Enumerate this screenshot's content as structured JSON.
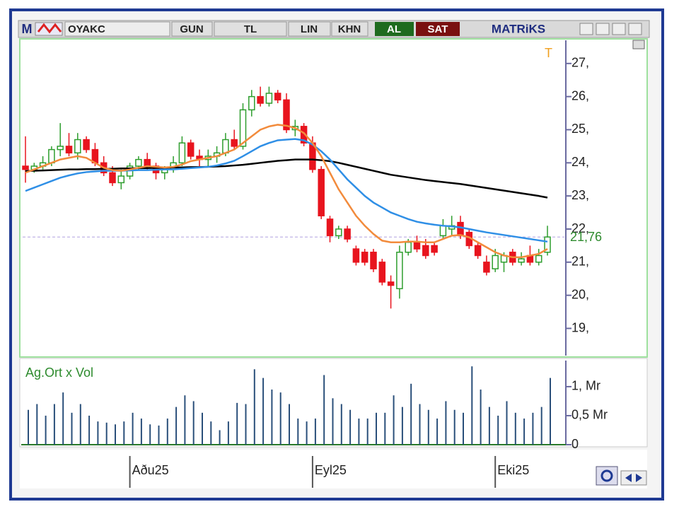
{
  "toolbar": {
    "logo": "M",
    "symbol": "OYAKC",
    "period": "GUN",
    "currency": "TL",
    "scale": "LIN",
    "style": "KHN",
    "buy": "AL",
    "sell": "SAT",
    "brand": "MATRiKS"
  },
  "chart_data": [
    {
      "type": "candlestick",
      "marker": "T",
      "categories": [
        null,
        null,
        null,
        null,
        null,
        null,
        null,
        null,
        null,
        null,
        null,
        null,
        "Aðu25",
        null,
        null,
        null,
        null,
        null,
        null,
        null,
        null,
        null,
        null,
        null,
        null,
        null,
        null,
        null,
        null,
        null,
        null,
        null,
        null,
        "Eyl25",
        null,
        null,
        null,
        null,
        null,
        null,
        null,
        null,
        null,
        null,
        null,
        null,
        null,
        null,
        null,
        null,
        null,
        null,
        null,
        null,
        "Eki25",
        null,
        null,
        null,
        null,
        null,
        null
      ],
      "open": [
        23.9,
        23.8,
        23.9,
        24.0,
        24.4,
        24.5,
        24.3,
        24.7,
        24.4,
        24.0,
        23.7,
        23.4,
        23.6,
        23.9,
        24.1,
        23.9,
        23.7,
        23.8,
        24.0,
        24.6,
        24.2,
        24.1,
        24.2,
        24.3,
        24.7,
        24.5,
        25.6,
        26.0,
        25.8,
        26.1,
        25.9,
        25.0,
        25.1,
        24.6,
        23.8,
        22.3,
        21.8,
        22.0,
        21.4,
        21.3,
        21.3,
        21.0,
        20.4,
        20.2,
        21.3,
        21.6,
        21.5,
        21.5,
        21.8,
        22.0,
        22.2,
        21.9,
        21.5,
        21.0,
        20.8,
        21.0,
        21.3,
        21.0,
        21.2,
        21.0,
        21.3
      ],
      "high": [
        24.8,
        24.0,
        24.2,
        24.5,
        25.2,
        24.9,
        24.9,
        24.8,
        24.6,
        24.2,
        23.9,
        23.8,
        24.0,
        24.2,
        24.3,
        24.0,
        23.9,
        24.2,
        24.8,
        24.7,
        24.4,
        24.4,
        24.5,
        24.9,
        25.0,
        25.8,
        26.2,
        26.3,
        26.3,
        26.2,
        26.1,
        25.3,
        25.2,
        24.8,
        23.9,
        22.4,
        22.1,
        22.1,
        21.5,
        21.4,
        21.4,
        21.1,
        20.6,
        21.5,
        21.7,
        21.8,
        21.7,
        21.6,
        22.3,
        22.4,
        22.4,
        22.0,
        21.6,
        21.2,
        21.4,
        21.3,
        21.4,
        21.3,
        21.5,
        21.4,
        22.1
      ],
      "low": [
        23.4,
        23.7,
        23.8,
        23.9,
        24.2,
        24.2,
        24.1,
        24.3,
        23.9,
        23.6,
        23.3,
        23.2,
        23.5,
        23.8,
        23.8,
        23.5,
        23.5,
        23.7,
        23.9,
        24.1,
        23.9,
        23.9,
        24.0,
        24.2,
        24.4,
        24.4,
        25.4,
        25.7,
        25.7,
        25.8,
        24.9,
        24.8,
        24.5,
        23.7,
        22.3,
        21.6,
        21.7,
        21.6,
        20.9,
        20.9,
        20.7,
        20.3,
        19.6,
        19.9,
        21.2,
        21.3,
        21.1,
        21.2,
        21.7,
        21.8,
        21.7,
        21.4,
        21.1,
        20.6,
        20.7,
        20.7,
        20.9,
        20.9,
        20.9,
        20.9,
        21.2
      ],
      "close": [
        23.8,
        23.9,
        24.0,
        24.4,
        24.5,
        24.3,
        24.7,
        24.4,
        24.0,
        23.7,
        23.4,
        23.6,
        23.9,
        24.1,
        23.9,
        23.7,
        23.8,
        24.0,
        24.6,
        24.2,
        24.1,
        24.2,
        24.3,
        24.7,
        24.5,
        25.6,
        26.0,
        25.8,
        26.1,
        25.9,
        25.0,
        25.1,
        24.6,
        23.8,
        22.4,
        21.8,
        22.0,
        21.7,
        21.0,
        21.0,
        20.8,
        20.4,
        20.3,
        21.3,
        21.6,
        21.4,
        21.2,
        21.3,
        22.1,
        22.1,
        21.8,
        21.5,
        21.2,
        20.7,
        21.2,
        21.2,
        21.0,
        21.1,
        21.0,
        21.2,
        21.76
      ],
      "up_color": "#2e9e2e",
      "down_color": "#e8141e",
      "overlays": [
        {
          "color": "#000000",
          "values": [
            23.75,
            23.76,
            23.77,
            23.78,
            23.79,
            23.8,
            23.8,
            23.81,
            23.81,
            23.82,
            23.82,
            23.83,
            23.83,
            23.84,
            23.84,
            23.85,
            23.85,
            23.86,
            23.86,
            23.87,
            23.87,
            23.88,
            23.89,
            23.9,
            23.92,
            23.94,
            23.97,
            24.0,
            24.03,
            24.06,
            24.08,
            24.1,
            24.1,
            24.1,
            24.08,
            24.05,
            24.0,
            23.94,
            23.88,
            23.82,
            23.76,
            23.7,
            23.64,
            23.6,
            23.56,
            23.52,
            23.48,
            23.45,
            23.42,
            23.39,
            23.36,
            23.32,
            23.28,
            23.24,
            23.2,
            23.16,
            23.12,
            23.08,
            23.04,
            23.0,
            22.95
          ]
        },
        {
          "color": "#2f8fe6",
          "values": [
            23.15,
            23.25,
            23.35,
            23.45,
            23.55,
            23.62,
            23.68,
            23.72,
            23.74,
            23.76,
            23.76,
            23.76,
            23.77,
            23.78,
            23.78,
            23.79,
            23.8,
            23.8,
            23.82,
            23.84,
            23.86,
            23.88,
            23.92,
            23.98,
            24.06,
            24.2,
            24.35,
            24.5,
            24.6,
            24.68,
            24.7,
            24.72,
            24.68,
            24.55,
            24.35,
            24.1,
            23.8,
            23.5,
            23.25,
            23.0,
            22.8,
            22.65,
            22.5,
            22.4,
            22.3,
            22.22,
            22.17,
            22.13,
            22.1,
            22.08,
            22.05,
            22.0,
            21.95,
            21.9,
            21.86,
            21.82,
            21.78,
            21.74,
            21.7,
            21.66,
            21.62
          ]
        },
        {
          "color": "#f28b3c",
          "values": [
            23.7,
            23.8,
            23.9,
            24.0,
            24.1,
            24.15,
            24.2,
            24.15,
            24.0,
            23.85,
            23.78,
            23.76,
            23.8,
            23.85,
            23.9,
            23.88,
            23.86,
            23.88,
            23.95,
            24.05,
            24.1,
            24.15,
            24.2,
            24.3,
            24.4,
            24.6,
            24.8,
            25.0,
            25.1,
            25.15,
            25.12,
            25.05,
            24.9,
            24.6,
            24.2,
            23.7,
            23.2,
            22.8,
            22.4,
            22.1,
            21.85,
            21.65,
            21.6,
            21.6,
            21.62,
            21.62,
            21.6,
            21.6,
            21.7,
            21.8,
            21.82,
            21.75,
            21.6,
            21.45,
            21.3,
            21.2,
            21.15,
            21.15,
            21.2,
            21.25,
            21.4
          ]
        }
      ],
      "last_price": {
        "value": 21.76,
        "label": "21,76"
      },
      "ylim": [
        18.2,
        27.7
      ],
      "yticks": [
        {
          "value": 19,
          "label": "19,"
        },
        {
          "value": 20,
          "label": "20,"
        },
        {
          "value": 21,
          "label": "21,"
        },
        {
          "value": 22,
          "label": "22,"
        },
        {
          "value": 23,
          "label": "23,"
        },
        {
          "value": 24,
          "label": "24,"
        },
        {
          "value": 25,
          "label": "25,"
        },
        {
          "value": 26,
          "label": "26,"
        },
        {
          "value": 27,
          "label": "27,"
        }
      ]
    },
    {
      "type": "bar",
      "title": "Ag.Ort x Vol",
      "color": "#2a4f7a",
      "values": [
        0.6,
        0.7,
        0.5,
        0.7,
        0.9,
        0.55,
        0.7,
        0.5,
        0.4,
        0.38,
        0.35,
        0.4,
        0.55,
        0.45,
        0.35,
        0.33,
        0.45,
        0.65,
        0.85,
        0.75,
        0.55,
        0.4,
        0.25,
        0.4,
        0.72,
        0.7,
        1.3,
        1.15,
        0.95,
        0.9,
        0.7,
        0.45,
        0.4,
        0.45,
        1.2,
        0.8,
        0.7,
        0.6,
        0.45,
        0.45,
        0.55,
        0.55,
        0.85,
        0.65,
        1.05,
        0.7,
        0.6,
        0.45,
        0.75,
        0.6,
        0.55,
        1.35,
        0.95,
        0.65,
        0.5,
        0.75,
        0.55,
        0.45,
        0.55,
        0.65,
        1.15
      ],
      "ylim": [
        0,
        1.45
      ],
      "yticks": [
        {
          "value": 0,
          "label": "0"
        },
        {
          "value": 0.5,
          "label": "0,5 Mr"
        },
        {
          "value": 1,
          "label": "1, Mr"
        }
      ]
    }
  ]
}
